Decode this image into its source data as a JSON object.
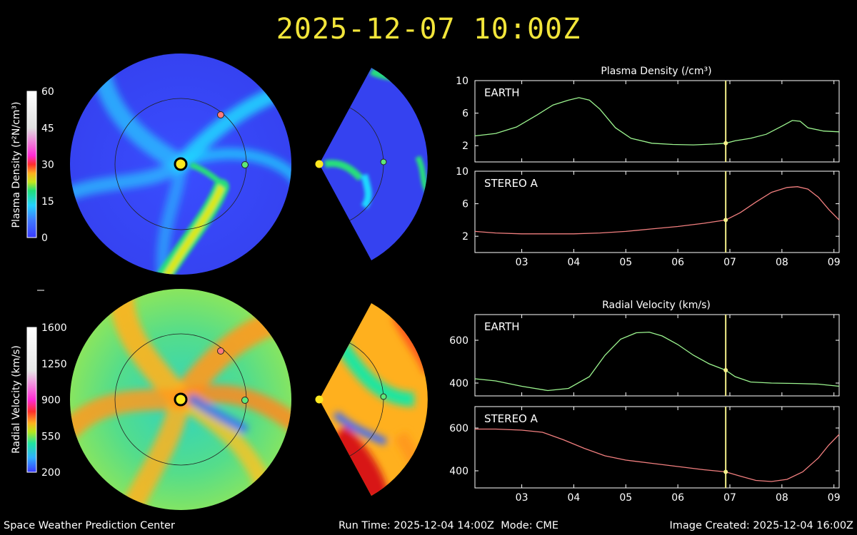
{
  "title": "2025-12-07 10:00Z",
  "footer": {
    "org": "Space Weather Prediction Center",
    "run_time": "Run Time: 2025-12-04 14:00Z",
    "mode": "Mode: CME",
    "image_created": "Image Created: 2025-12-04 16:00Z"
  },
  "colorbars": [
    {
      "label": "Plasma Density (r²N/cm³)",
      "ticks": [
        60,
        45,
        30,
        15,
        0
      ],
      "range": [
        0,
        60
      ]
    },
    {
      "label": "Radial Velocity (km/s)",
      "ticks": [
        1600,
        1250,
        900,
        550,
        200
      ],
      "range": [
        200,
        1600
      ]
    }
  ],
  "colors": {
    "earth_series": "#9cf58f",
    "stereo_series": "#f27f7f",
    "current_time_line": "#f5f08a",
    "title": "#f2e53a"
  },
  "chart_data": [
    {
      "type": "line",
      "title": "Plasma Density (/cm³)",
      "panel": "EARTH",
      "x_unit": "day of month (Dec 2025)",
      "x_ticks": [
        "03",
        "04",
        "05",
        "06",
        "07",
        "08",
        "09"
      ],
      "x": [
        2.6,
        3.0,
        3.4,
        3.8,
        4.1,
        4.4,
        4.6,
        4.8,
        5.0,
        5.3,
        5.6,
        6.0,
        6.4,
        6.8,
        7.2,
        7.42,
        7.6,
        7.9,
        8.2,
        8.5,
        8.7,
        8.85,
        9.0,
        9.3,
        9.6
      ],
      "values": [
        3.2,
        3.5,
        4.3,
        5.8,
        7.0,
        7.6,
        7.9,
        7.6,
        6.5,
        4.2,
        2.9,
        2.3,
        2.15,
        2.1,
        2.2,
        2.3,
        2.6,
        2.9,
        3.4,
        4.4,
        5.1,
        5.0,
        4.2,
        3.8,
        3.7
      ],
      "ylim": [
        0,
        10
      ],
      "y_ticks": [
        2,
        6,
        10
      ],
      "current_time": 7.42,
      "grid": false
    },
    {
      "type": "line",
      "panel": "STEREO A",
      "x_ticks": [
        "03",
        "04",
        "05",
        "06",
        "07",
        "08",
        "09"
      ],
      "x": [
        2.6,
        3.0,
        3.5,
        4.0,
        4.5,
        5.0,
        5.5,
        6.0,
        6.5,
        7.0,
        7.42,
        7.7,
        8.0,
        8.3,
        8.6,
        8.8,
        9.0,
        9.2,
        9.4,
        9.6
      ],
      "values": [
        2.6,
        2.4,
        2.3,
        2.3,
        2.3,
        2.4,
        2.6,
        2.9,
        3.2,
        3.6,
        4.0,
        4.9,
        6.2,
        7.4,
        8.0,
        8.1,
        7.8,
        6.8,
        5.3,
        4.0
      ],
      "ylim": [
        0,
        10
      ],
      "y_ticks": [
        2,
        6,
        10
      ],
      "current_time": 7.42,
      "grid": false
    },
    {
      "type": "line",
      "title": "Radial Velocity (km/s)",
      "panel": "EARTH",
      "x_ticks": [
        "03",
        "04",
        "05",
        "06",
        "07",
        "08",
        "09"
      ],
      "x": [
        2.6,
        3.0,
        3.5,
        4.0,
        4.4,
        4.8,
        5.1,
        5.4,
        5.7,
        5.95,
        6.2,
        6.5,
        6.8,
        7.1,
        7.42,
        7.6,
        7.9,
        8.3,
        8.8,
        9.2,
        9.6
      ],
      "values": [
        420,
        410,
        385,
        365,
        375,
        430,
        530,
        605,
        635,
        638,
        620,
        580,
        530,
        490,
        460,
        430,
        405,
        400,
        398,
        395,
        385
      ],
      "ylim": [
        340,
        720
      ],
      "y_ticks": [
        400,
        600
      ],
      "current_time": 7.42,
      "grid": false
    },
    {
      "type": "line",
      "panel": "STEREO A",
      "x_ticks": [
        "03",
        "04",
        "05",
        "06",
        "07",
        "08",
        "09"
      ],
      "x": [
        2.6,
        3.0,
        3.5,
        3.9,
        4.3,
        4.7,
        5.1,
        5.5,
        6.0,
        6.5,
        7.0,
        7.42,
        7.7,
        8.0,
        8.3,
        8.6,
        8.9,
        9.2,
        9.4,
        9.6
      ],
      "values": [
        595,
        595,
        590,
        580,
        545,
        505,
        470,
        450,
        435,
        420,
        405,
        395,
        375,
        355,
        350,
        360,
        395,
        460,
        520,
        570
      ],
      "ylim": [
        320,
        700
      ],
      "y_ticks": [
        400,
        600
      ],
      "current_time": 7.42,
      "grid": false
    }
  ]
}
